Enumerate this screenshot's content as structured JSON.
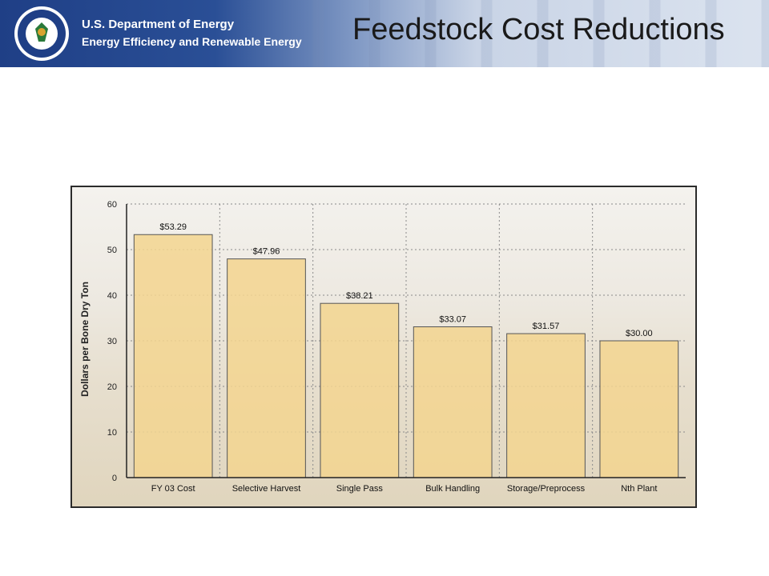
{
  "header": {
    "org_line1": "U.S. Department of Energy",
    "org_line2": "Energy Efficiency and Renewable Energy",
    "slide_title": "Feedstock Cost Reductions",
    "seal_text": "DEPARTMENT OF ENERGY · UNITED STATES OF AMERICA"
  },
  "chart_data": {
    "type": "bar",
    "categories": [
      "FY 03 Cost",
      "Selective Harvest",
      "Single Pass",
      "Bulk Handling",
      "Storage/Preprocess",
      "Nth Plant"
    ],
    "values": [
      53.29,
      47.96,
      38.21,
      33.07,
      31.57,
      30.0
    ],
    "value_labels": [
      "$53.29",
      "$47.96",
      "$38.21",
      "$33.07",
      "$31.57",
      "$30.00"
    ],
    "ylabel": "Dollars per Bone Dry Ton",
    "ylim": [
      0,
      60
    ],
    "yticks": [
      0,
      10,
      20,
      30,
      40,
      50,
      60
    ],
    "grid": true,
    "colors": {
      "bar_fill": "#f3d58f",
      "bar_stroke": "#555555",
      "grid": "#8a8a8a"
    }
  }
}
